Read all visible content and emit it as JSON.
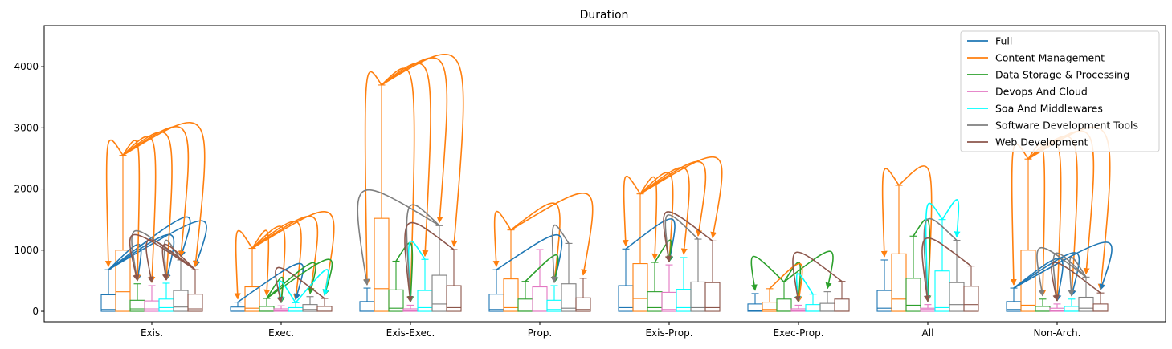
{
  "chart_data": {
    "type": "box",
    "title": "Duration",
    "xlabel": "",
    "ylabel": "",
    "ylim": [
      -170,
      4670
    ],
    "yticks": [
      0,
      1000,
      2000,
      3000,
      4000
    ],
    "categories": [
      "Exis.",
      "Exec.",
      "Exis-Exec.",
      "Prop.",
      "Exis-Prop.",
      "Exec-Prop.",
      "All",
      "Non-Arch."
    ],
    "legend_position": "top-right",
    "series": [
      {
        "name": "Full",
        "color": "#1f77b4"
      },
      {
        "name": "Content Management",
        "color": "#ff7f0e"
      },
      {
        "name": "Data Storage & Processing",
        "color": "#2ca02c"
      },
      {
        "name": "Devops And Cloud",
        "color": "#e377c2"
      },
      {
        "name": "Soa And Middlewares",
        "color": "#00ffff"
      },
      {
        "name": "Software Development Tools",
        "color": "#7f7f7f"
      },
      {
        "name": "Web Development",
        "color": "#8c564b"
      }
    ],
    "boxes": [
      [
        [
          0,
          30,
          270,
          680
        ],
        [
          0,
          320,
          1000,
          2550
        ],
        [
          0,
          40,
          180,
          450
        ],
        [
          0,
          40,
          170,
          420
        ],
        [
          0,
          60,
          200,
          460
        ],
        [
          0,
          70,
          340,
          840
        ],
        [
          0,
          40,
          280,
          680
        ]
      ],
      [
        [
          0,
          20,
          70,
          150
        ],
        [
          0,
          50,
          400,
          1030
        ],
        [
          0,
          20,
          80,
          210
        ],
        [
          0,
          10,
          40,
          90
        ],
        [
          0,
          20,
          60,
          140
        ],
        [
          0,
          30,
          110,
          240
        ],
        [
          0,
          20,
          80,
          210
        ]
      ],
      [
        [
          0,
          20,
          160,
          380
        ],
        [
          0,
          370,
          1520,
          3700
        ],
        [
          0,
          50,
          350,
          820
        ],
        [
          0,
          10,
          40,
          100
        ],
        [
          0,
          60,
          340,
          850
        ],
        [
          0,
          120,
          590,
          1400
        ],
        [
          0,
          60,
          420,
          1010
        ]
      ],
      [
        [
          0,
          30,
          280,
          680
        ],
        [
          0,
          60,
          530,
          1330
        ],
        [
          0,
          20,
          200,
          490
        ],
        [
          0,
          20,
          400,
          1010
        ],
        [
          0,
          30,
          180,
          420
        ],
        [
          0,
          50,
          450,
          1110
        ],
        [
          0,
          30,
          220,
          540
        ]
      ],
      [
        [
          0,
          60,
          420,
          1020
        ],
        [
          0,
          210,
          780,
          1920
        ],
        [
          0,
          60,
          320,
          800
        ],
        [
          0,
          30,
          310,
          760
        ],
        [
          0,
          60,
          360,
          880
        ],
        [
          0,
          60,
          480,
          1180
        ],
        [
          0,
          60,
          470,
          1150
        ]
      ],
      [
        [
          0,
          10,
          120,
          290
        ],
        [
          0,
          30,
          150,
          370
        ],
        [
          0,
          20,
          200,
          480
        ],
        [
          0,
          10,
          40,
          100
        ],
        [
          0,
          20,
          110,
          280
        ],
        [
          0,
          20,
          130,
          320
        ],
        [
          0,
          20,
          200,
          490
        ]
      ],
      [
        [
          0,
          50,
          340,
          840
        ],
        [
          0,
          200,
          940,
          2060
        ],
        [
          0,
          100,
          540,
          1230
        ],
        [
          0,
          30,
          50,
          110
        ],
        [
          0,
          60,
          660,
          1500
        ],
        [
          0,
          110,
          470,
          1160
        ],
        [
          0,
          110,
          410,
          740
        ]
      ],
      [
        [
          0,
          30,
          160,
          380
        ],
        [
          0,
          100,
          1000,
          2490
        ],
        [
          0,
          20,
          80,
          200
        ],
        [
          0,
          10,
          50,
          120
        ],
        [
          0,
          20,
          80,
          200
        ],
        [
          0,
          50,
          230,
          560
        ],
        [
          0,
          20,
          120,
          300
        ]
      ]
    ],
    "arrows": [
      {
        "category": 0,
        "from": 0,
        "to": [
          2,
          4,
          5,
          6
        ]
      },
      {
        "category": 0,
        "from": 1,
        "to": [
          0,
          2,
          3,
          4,
          5,
          6
        ]
      },
      {
        "category": 0,
        "from": 5,
        "to": [
          2,
          4
        ]
      },
      {
        "category": 0,
        "from": 6,
        "to": [
          2,
          3,
          4
        ]
      },
      {
        "category": 1,
        "from": 1,
        "to": [
          0,
          2,
          3,
          4,
          5,
          6
        ]
      },
      {
        "category": 1,
        "from": 0,
        "to": [
          4
        ]
      },
      {
        "category": 1,
        "from": 2,
        "to": [
          3,
          5,
          6
        ]
      },
      {
        "category": 1,
        "from": 4,
        "to": [
          3,
          6
        ]
      },
      {
        "category": 1,
        "from": 6,
        "to": [
          3
        ]
      },
      {
        "category": 2,
        "from": 1,
        "to": [
          0,
          3,
          4,
          5,
          6
        ]
      },
      {
        "category": 2,
        "from": 2,
        "to": [
          3
        ]
      },
      {
        "category": 2,
        "from": 4,
        "to": [
          3
        ]
      },
      {
        "category": 2,
        "from": 5,
        "to": [
          0,
          3
        ]
      },
      {
        "category": 2,
        "from": 6,
        "to": [
          3
        ]
      },
      {
        "category": 3,
        "from": 1,
        "to": [
          0,
          4,
          6
        ]
      },
      {
        "category": 3,
        "from": 0,
        "to": [
          4
        ]
      },
      {
        "category": 3,
        "from": 2,
        "to": [
          4
        ]
      },
      {
        "category": 3,
        "from": 5,
        "to": [
          4
        ]
      },
      {
        "category": 4,
        "from": 1,
        "to": [
          0,
          2,
          3,
          4,
          5,
          6
        ]
      },
      {
        "category": 4,
        "from": 0,
        "to": [
          3
        ]
      },
      {
        "category": 4,
        "from": 2,
        "to": [
          3
        ]
      },
      {
        "category": 4,
        "from": 5,
        "to": [
          3
        ]
      },
      {
        "category": 4,
        "from": 6,
        "to": [
          3
        ]
      },
      {
        "category": 5,
        "from": 2,
        "to": [
          0,
          3,
          5
        ]
      },
      {
        "category": 5,
        "from": 1,
        "to": [
          3
        ]
      },
      {
        "category": 5,
        "from": 4,
        "to": [
          3
        ]
      },
      {
        "category": 5,
        "from": 6,
        "to": [
          3
        ]
      },
      {
        "category": 6,
        "from": 1,
        "to": [
          0,
          3
        ]
      },
      {
        "category": 6,
        "from": 2,
        "to": [
          3
        ]
      },
      {
        "category": 6,
        "from": 4,
        "to": [
          3,
          5
        ]
      },
      {
        "category": 6,
        "from": 5,
        "to": [
          3
        ]
      },
      {
        "category": 6,
        "from": 6,
        "to": [
          3
        ]
      },
      {
        "category": 7,
        "from": 1,
        "to": [
          0,
          2,
          3,
          4,
          5,
          6
        ]
      },
      {
        "category": 7,
        "from": 0,
        "to": [
          3,
          4,
          6
        ]
      },
      {
        "category": 7,
        "from": 5,
        "to": [
          2,
          3,
          4
        ]
      },
      {
        "category": 7,
        "from": 6,
        "to": [
          3
        ]
      }
    ]
  }
}
